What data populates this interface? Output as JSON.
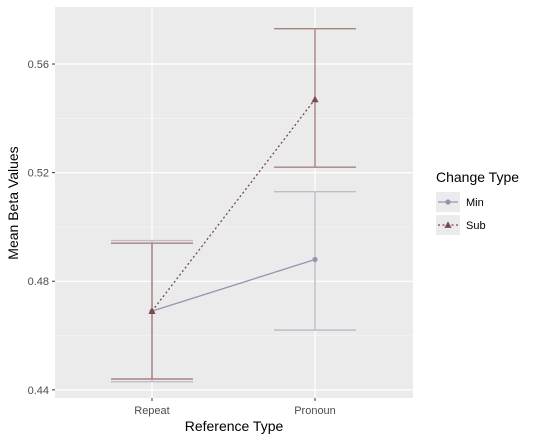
{
  "chart_data": {
    "type": "line",
    "xlabel": "Reference Type",
    "ylabel": "Mean Beta Values",
    "categories": [
      "Repeat",
      "Pronoun"
    ],
    "ylim": [
      0.437,
      0.581
    ],
    "yticks": [
      0.44,
      0.48,
      0.52,
      0.56
    ],
    "ytick_labels": [
      "0.44",
      "0.48",
      "0.52",
      "0.56"
    ],
    "grid": true,
    "legend": {
      "title": "Change Type",
      "placement": "right"
    },
    "series": [
      {
        "name": "Min",
        "color": "#9d8fb0",
        "errorbar_color": "#c3bacd",
        "marker": "circle",
        "linestyle": "solid",
        "values": [
          0.469,
          0.488
        ],
        "lower": [
          0.443,
          0.462
        ],
        "upper": [
          0.495,
          0.513
        ]
      },
      {
        "name": "Sub",
        "color": "#7a4a4a",
        "errorbar_color": "#a8837f",
        "marker": "triangle",
        "linestyle": "dotted",
        "values": [
          0.469,
          0.547
        ],
        "lower": [
          0.444,
          0.522
        ],
        "upper": [
          0.494,
          0.573
        ]
      }
    ]
  }
}
